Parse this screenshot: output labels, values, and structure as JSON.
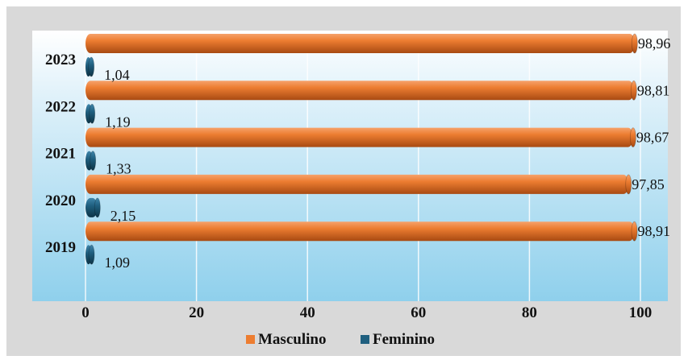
{
  "chart_data": {
    "type": "bar",
    "orientation": "horizontal",
    "categories": [
      "2023",
      "2022",
      "2021",
      "2020",
      "2019"
    ],
    "series": [
      {
        "name": "Masculino",
        "color": "#ed7d31",
        "values": [
          98.96,
          98.81,
          98.67,
          97.85,
          98.91
        ],
        "labels": [
          "98,96",
          "98,81",
          "98,67",
          "97,85",
          "98,91"
        ]
      },
      {
        "name": "Feminino",
        "color": "#1f5f7f",
        "values": [
          1.04,
          1.19,
          1.33,
          2.15,
          1.09
        ],
        "labels": [
          "1,04",
          "1,19",
          "1,33",
          "2,15",
          "1,09"
        ]
      }
    ],
    "xlim": [
      0,
      100
    ],
    "x_ticks": [
      "0",
      "20",
      "40",
      "60",
      "80",
      "100"
    ],
    "grid": true,
    "legend_position": "bottom"
  }
}
